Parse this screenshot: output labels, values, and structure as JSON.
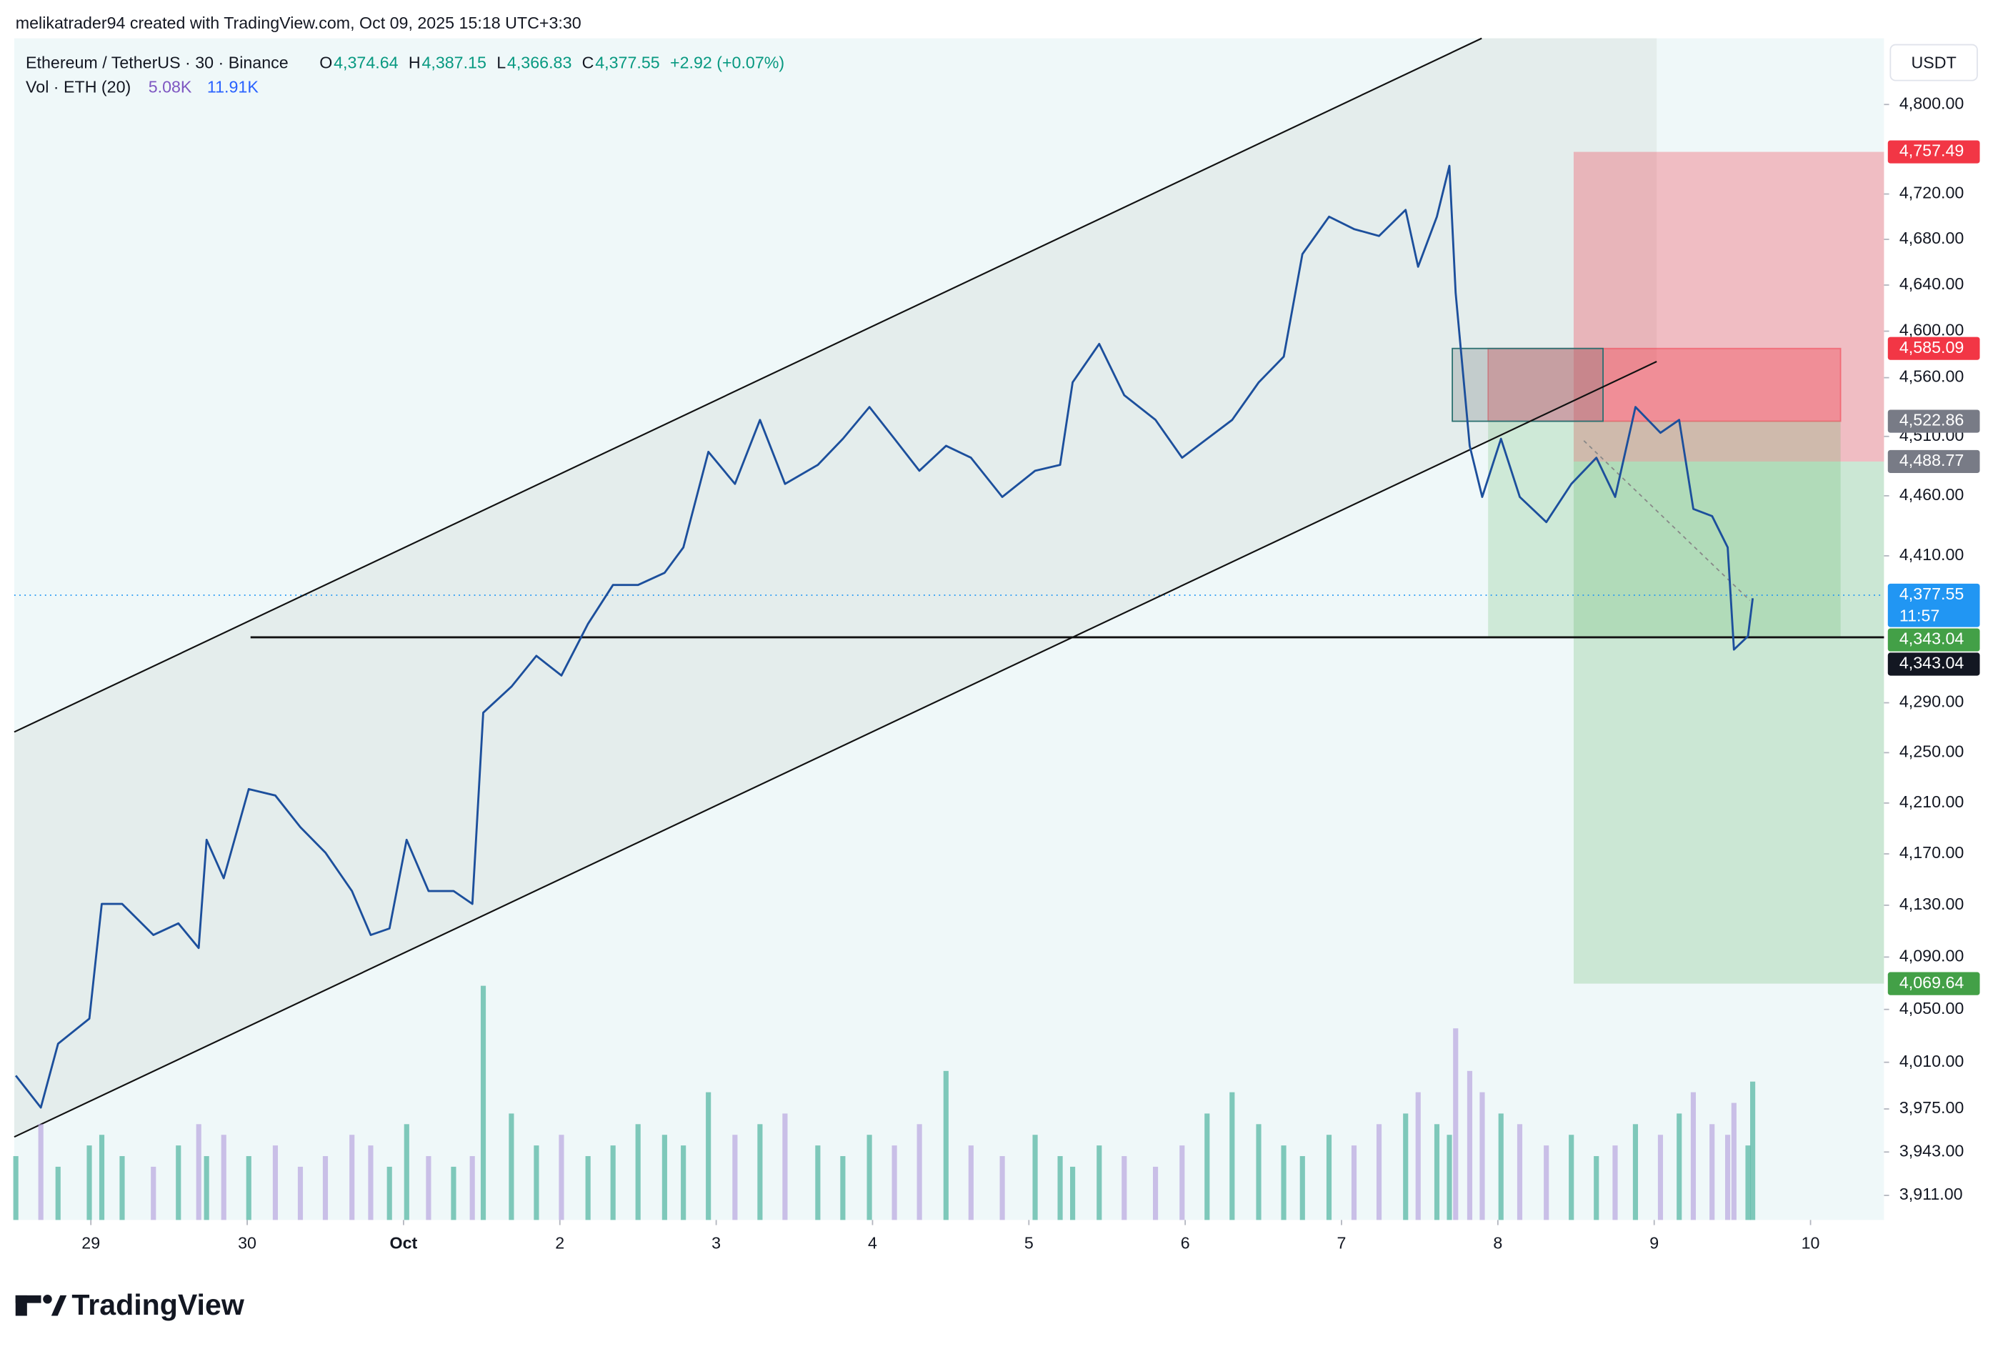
{
  "header": {
    "watermark": "melikatrader94 created with TradingView.com, Oct 09, 2025 15:18 UTC+3:30",
    "ohlc": [
      {
        "key": "O",
        "value": "4,374.64"
      },
      {
        "key": "H",
        "value": "4,387.15"
      },
      {
        "key": "L",
        "value": "4,366.83"
      },
      {
        "key": "C",
        "value": "4,377.55"
      }
    ],
    "change": "+2.92 (+0.07%)",
    "currency": "USDT",
    "countdown": "11:57",
    "logo": "TradingView"
  },
  "chart_data": {
    "type": "line",
    "log_scale": true,
    "grid": false,
    "x": [
      -0.48,
      -0.32,
      -0.21,
      -0.01,
      0.07,
      0.2,
      0.4,
      0.56,
      0.69,
      0.74,
      0.85,
      1.01,
      1.18,
      1.34,
      1.5,
      1.67,
      1.79,
      1.91,
      2.02,
      2.16,
      2.32,
      2.44,
      2.51,
      2.69,
      2.85,
      3.01,
      3.18,
      3.34,
      3.5,
      3.67,
      3.79,
      3.95,
      4.12,
      4.28,
      4.44,
      4.65,
      4.81,
      4.98,
      5.14,
      5.3,
      5.47,
      5.63,
      5.83,
      6.04,
      6.2,
      6.28,
      6.45,
      6.61,
      6.81,
      6.98,
      7.14,
      7.3,
      7.47,
      7.63,
      7.75,
      7.92,
      8.08,
      8.24,
      8.41,
      8.49,
      8.61,
      8.69,
      8.73,
      8.82,
      8.9,
      9.02,
      9.14,
      9.31,
      9.47,
      9.63,
      9.75,
      9.88,
      10.04,
      10.16,
      10.25,
      10.37,
      10.47,
      10.51,
      10.6,
      10.63
    ],
    "series": [
      {
        "name": "Ethereum / TetherUS · 30 · Binance",
        "color": "#1c4f9c",
        "values": [
          4000,
          3976,
          4024,
          4043,
          4131,
          4131,
          4107,
          4116,
          4097,
          4181,
          4151,
          4221,
          4216,
          4191,
          4171,
          4141,
          4107,
          4112,
          4181,
          4141,
          4141,
          4131,
          4282,
          4303,
          4328,
          4312,
          4354,
          4386,
          4386,
          4396,
          4417,
          4497,
          4470,
          4524,
          4470,
          4486,
          4508,
          4535,
          4508,
          4481,
          4502,
          4492,
          4459,
          4481,
          4486,
          4556,
          4589,
          4545,
          4524,
          4492,
          4508,
          4524,
          4556,
          4578,
          4667,
          4700,
          4689,
          4683,
          4706,
          4656,
          4700,
          4745,
          4633,
          4502,
          4459,
          4508,
          4459,
          4438,
          4470,
          4492,
          4459,
          4535,
          4513,
          4524,
          4449,
          4443,
          4417,
          4333,
          4344,
          4375
        ]
      }
    ],
    "volume": {
      "name": "Vol · ETH (20)",
      "legend_values": [
        "5.08K",
        "11.91K"
      ],
      "up_color": "#4fb3a0",
      "down_color": "#b9a6e0",
      "vlim": [
        0,
        30
      ],
      "values": [
        6,
        9,
        5,
        7,
        8,
        6,
        5,
        7,
        9,
        6,
        8,
        6,
        7,
        5,
        6,
        8,
        7,
        5,
        9,
        6,
        5,
        6,
        22,
        10,
        7,
        8,
        6,
        7,
        9,
        8,
        7,
        12,
        8,
        9,
        10,
        7,
        6,
        8,
        7,
        9,
        14,
        7,
        6,
        8,
        6,
        5,
        7,
        6,
        5,
        7,
        10,
        12,
        9,
        7,
        6,
        8,
        7,
        9,
        10,
        12,
        9,
        8,
        18,
        14,
        12,
        10,
        9,
        7,
        8,
        6,
        7,
        9,
        8,
        10,
        12,
        9,
        8,
        11,
        7,
        13
      ]
    },
    "xlim": [
      -0.49,
      11.47
    ],
    "xticks": [
      {
        "value": 0,
        "label": "29"
      },
      {
        "value": 1,
        "label": "30"
      },
      {
        "value": 2,
        "label": "Oct"
      },
      {
        "value": 3,
        "label": "2"
      },
      {
        "value": 4,
        "label": "3"
      },
      {
        "value": 5,
        "label": "4"
      },
      {
        "value": 6,
        "label": "5"
      },
      {
        "value": 7,
        "label": "6"
      },
      {
        "value": 8,
        "label": "7"
      },
      {
        "value": 9,
        "label": "8"
      },
      {
        "value": 10,
        "label": "9"
      },
      {
        "value": 11,
        "label": "10"
      }
    ],
    "ylim": [
      3893,
      4860
    ],
    "yticks": [
      {
        "value": 4800,
        "label": "4,800.00"
      },
      {
        "value": 4720,
        "label": "4,720.00"
      },
      {
        "value": 4680,
        "label": "4,680.00"
      },
      {
        "value": 4640,
        "label": "4,640.00"
      },
      {
        "value": 4600,
        "label": "4,600.00"
      },
      {
        "value": 4560,
        "label": "4,560.00"
      },
      {
        "value": 4510,
        "label": "4,510.00"
      },
      {
        "value": 4460,
        "label": "4,460.00"
      },
      {
        "value": 4410,
        "label": "4,410.00"
      },
      {
        "value": 4290,
        "label": "4,290.00"
      },
      {
        "value": 4250,
        "label": "4,250.00"
      },
      {
        "value": 4210,
        "label": "4,210.00"
      },
      {
        "value": 4170,
        "label": "4,170.00"
      },
      {
        "value": 4130,
        "label": "4,130.00"
      },
      {
        "value": 4090,
        "label": "4,090.00"
      },
      {
        "value": 4050,
        "label": "4,050.00"
      },
      {
        "value": 4010,
        "label": "4,010.00"
      },
      {
        "value": 3975,
        "label": "3,975.00"
      },
      {
        "value": 3943,
        "label": "3,943.00"
      },
      {
        "value": 3911,
        "label": "3,911.00"
      }
    ],
    "annotations": [
      {
        "value": 4757.49,
        "label": "4,757.49",
        "color": "#f23645"
      },
      {
        "value": 4585.09,
        "label": "4,585.09",
        "color": "#f23645"
      },
      {
        "value": 4522.86,
        "label": "4,522.86",
        "color": "#787b86"
      },
      {
        "value": 4488.77,
        "label": "4,488.77",
        "color": "#787b86"
      },
      {
        "value": 4377.55,
        "label": "4,377.55",
        "color": "#2196f3"
      },
      {
        "value": 4343.04,
        "label": "4,343.04",
        "color": "#43a047"
      },
      {
        "value": 4343.04,
        "label": "4,343.04",
        "color": "#131722"
      },
      {
        "value": 4069.64,
        "label": "4,069.64",
        "color": "#43a047"
      }
    ]
  }
}
